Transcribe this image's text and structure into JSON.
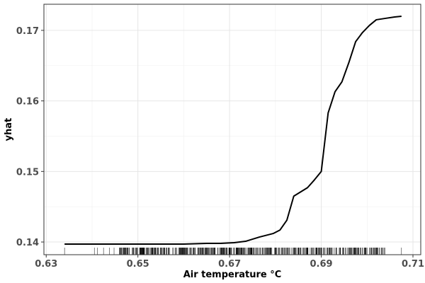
{
  "chart_data": {
    "type": "line",
    "title": "",
    "xlabel": "Air temperature °C",
    "ylabel": "yhat",
    "xlim": [
      0.6295,
      0.7117
    ],
    "ylim": [
      0.1382,
      0.1737
    ],
    "xticks": [
      0.63,
      0.65,
      0.67,
      0.69,
      0.71
    ],
    "xtick_labels": [
      "0.63",
      "0.65",
      "0.67",
      "0.69",
      "0.71"
    ],
    "yticks": [
      0.14,
      0.15,
      0.16,
      0.17
    ],
    "ytick_labels": [
      "0.14",
      "0.15",
      "0.16",
      "0.17"
    ],
    "grid": true,
    "legend": "none",
    "series": [
      {
        "color": "#000000",
        "x": [
          0.634,
          0.64,
          0.645,
          0.65,
          0.655,
          0.66,
          0.665,
          0.668,
          0.671,
          0.6735,
          0.6765,
          0.6795,
          0.681,
          0.6825,
          0.684,
          0.6855,
          0.687,
          0.6885,
          0.69,
          0.6915,
          0.693,
          0.6945,
          0.696,
          0.6975,
          0.699,
          0.7005,
          0.702,
          0.704,
          0.706,
          0.7075
        ],
        "y": [
          0.1397,
          0.1397,
          0.1397,
          0.1397,
          0.1397,
          0.1397,
          0.1398,
          0.1398,
          0.1399,
          0.1401,
          0.1407,
          0.1412,
          0.1417,
          0.1431,
          0.1465,
          0.1471,
          0.1477,
          0.1488,
          0.15,
          0.1583,
          0.1613,
          0.1627,
          0.1654,
          0.1684,
          0.1697,
          0.1707,
          0.1715,
          0.1717,
          0.1719,
          0.172
        ]
      }
    ],
    "rug": {
      "x_min": 0.634,
      "x_max": 0.7075,
      "dense_from": 0.646,
      "dense_to": 0.704
    }
  }
}
